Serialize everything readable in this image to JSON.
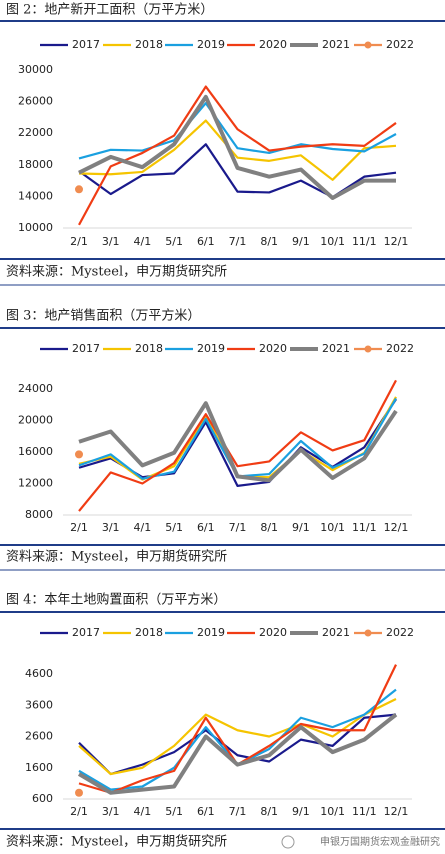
{
  "chart_data": [
    {
      "type": "line",
      "title": "图 2：地产新开工面积（万平方米）",
      "source": "资料来源：Mysteel，申万期货研究所",
      "categories": [
        "2/1",
        "3/1",
        "4/1",
        "5/1",
        "6/1",
        "7/1",
        "8/1",
        "9/1",
        "10/1",
        "11/1",
        "12/1"
      ],
      "ylim": [
        10000,
        30000
      ],
      "yticks": [
        10000,
        14000,
        18000,
        22000,
        26000,
        30000
      ],
      "grid": false,
      "series": [
        {
          "name": "2017",
          "color": "#1a1a8c",
          "values": [
            17200,
            14300,
            16700,
            16900,
            20600,
            14600,
            14500,
            16000,
            13900,
            16500,
            17000
          ]
        },
        {
          "name": "2018",
          "color": "#f5c400",
          "values": [
            16900,
            16800,
            17100,
            19900,
            23600,
            18900,
            18500,
            19200,
            16100,
            20100,
            20400
          ]
        },
        {
          "name": "2019",
          "color": "#1aa0e0",
          "values": [
            18800,
            19900,
            19800,
            21100,
            25800,
            20100,
            19500,
            20600,
            20000,
            19700,
            21900
          ]
        },
        {
          "name": "2020",
          "color": "#f03c14",
          "values": [
            10400,
            17800,
            19500,
            21700,
            27900,
            22500,
            19800,
            20300,
            20600,
            20400,
            23300
          ]
        },
        {
          "name": "2021",
          "color": "#808080",
          "values": [
            17000,
            19000,
            17700,
            20600,
            26600,
            17600,
            16500,
            17400,
            13800,
            16000,
            16000
          ]
        },
        {
          "name": "2022",
          "color": "#f08c50",
          "marker": true,
          "values": [
            14900,
            null,
            null,
            null,
            null,
            null,
            null,
            null,
            null,
            null,
            null
          ]
        }
      ]
    },
    {
      "type": "line",
      "title": "图 3：地产销售面积（万平方米）",
      "source": "资料来源：Mysteel，申万期货研究所",
      "categories": [
        "2/1",
        "3/1",
        "4/1",
        "5/1",
        "6/1",
        "7/1",
        "8/1",
        "9/1",
        "10/1",
        "11/1",
        "12/1"
      ],
      "ylim": [
        8000,
        26000
      ],
      "yticks": [
        8000,
        12000,
        16000,
        20000,
        24000
      ],
      "grid": false,
      "series": [
        {
          "name": "2017",
          "color": "#1a1a8c",
          "values": [
            14000,
            15200,
            12800,
            13300,
            19800,
            11700,
            12200,
            16600,
            14100,
            16600,
            22700
          ]
        },
        {
          "name": "2018",
          "color": "#f5c400",
          "values": [
            14500,
            15400,
            12500,
            14200,
            20600,
            12900,
            12800,
            16200,
            13700,
            15900,
            23000
          ]
        },
        {
          "name": "2019",
          "color": "#1aa0e0",
          "values": [
            14300,
            15700,
            12600,
            13500,
            20200,
            12900,
            13200,
            17400,
            14000,
            15800,
            22800
          ]
        },
        {
          "name": "2020",
          "color": "#f03c14",
          "values": [
            8500,
            13400,
            12000,
            14600,
            20800,
            14200,
            14800,
            18500,
            16200,
            17500,
            25100
          ]
        },
        {
          "name": "2021",
          "color": "#808080",
          "values": [
            17300,
            18600,
            14300,
            15900,
            22200,
            12900,
            12400,
            16300,
            12700,
            15200,
            21200
          ]
        },
        {
          "name": "2022",
          "color": "#f08c50",
          "marker": true,
          "values": [
            15700,
            null,
            null,
            null,
            null,
            null,
            null,
            null,
            null,
            null,
            null
          ]
        }
      ]
    },
    {
      "type": "line",
      "title": "图 4：本年土地购置面积（万平方米）",
      "source": "资料来源：Mysteel，申万期货研究所",
      "categories": [
        "2/1",
        "3/1",
        "4/1",
        "5/1",
        "6/1",
        "7/1",
        "8/1",
        "9/1",
        "10/1",
        "11/1",
        "12/1"
      ],
      "ylim": [
        600,
        5200
      ],
      "yticks": [
        600,
        1600,
        2600,
        3600,
        4600
      ],
      "grid": false,
      "series": [
        {
          "name": "2017",
          "color": "#1a1a8c",
          "values": [
            2400,
            1400,
            1700,
            2100,
            2800,
            2000,
            1800,
            2500,
            2300,
            3200,
            3300
          ]
        },
        {
          "name": "2018",
          "color": "#f5c400",
          "values": [
            2300,
            1400,
            1600,
            2300,
            3300,
            2800,
            2600,
            3000,
            2600,
            3300,
            3800
          ]
        },
        {
          "name": "2019",
          "color": "#1aa0e0",
          "values": [
            1500,
            900,
            1000,
            1600,
            2900,
            1700,
            2200,
            3200,
            2900,
            3300,
            4100
          ]
        },
        {
          "name": "2020",
          "color": "#f03c14",
          "values": [
            1100,
            800,
            1200,
            1500,
            3200,
            1700,
            2300,
            3000,
            2800,
            2800,
            4900
          ]
        },
        {
          "name": "2021",
          "color": "#808080",
          "values": [
            1400,
            800,
            900,
            1000,
            2600,
            1700,
            2000,
            2900,
            2100,
            2500,
            3300
          ]
        },
        {
          "name": "2022",
          "color": "#f08c50",
          "marker": true,
          "values": [
            800,
            null,
            null,
            null,
            null,
            null,
            null,
            null,
            null,
            null,
            null
          ]
        }
      ]
    }
  ],
  "watermark": "申银万国期货宏观金融研究"
}
